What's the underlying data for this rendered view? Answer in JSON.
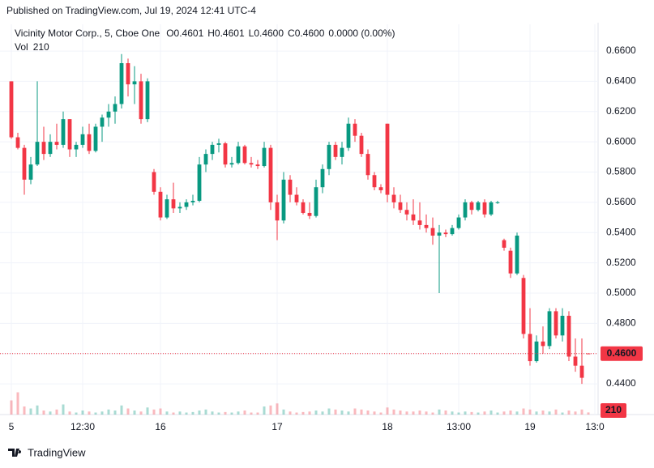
{
  "header": {
    "published": "Published on TradingView.com, Jul 19, 2024 12:41 UTC-4"
  },
  "footer": {
    "brand": "TradingView"
  },
  "chart_data": {
    "type": "candlestick",
    "symbol": "Vicinity Motor Corp., 5, Cboe One",
    "ohlc": [
      {
        "key": "O",
        "value": "0.4601"
      },
      {
        "key": "H",
        "value": "0.4601"
      },
      {
        "key": "L",
        "value": "0.4600"
      },
      {
        "key": "C",
        "value": "0.4600"
      }
    ],
    "change": "0.0000 (0.00%)",
    "volume_title": "Vol",
    "volume_value": "210",
    "up_color": "#089981",
    "down_color": "#f23645",
    "grid": true,
    "ylim": [
      0.4197,
      0.6777
    ],
    "yticks": [
      {
        "value": 0.44,
        "label": "0.4400"
      },
      {
        "value": 0.46,
        "label": "0.4600"
      },
      {
        "value": 0.48,
        "label": "0.4800"
      },
      {
        "value": 0.5,
        "label": "0.5000"
      },
      {
        "value": 0.52,
        "label": "0.5200"
      },
      {
        "value": 0.54,
        "label": "0.5400"
      },
      {
        "value": 0.56,
        "label": "0.5600"
      },
      {
        "value": 0.58,
        "label": "0.5800"
      },
      {
        "value": 0.6,
        "label": "0.6000"
      },
      {
        "value": 0.62,
        "label": "0.6200"
      },
      {
        "value": 0.64,
        "label": "0.6400"
      },
      {
        "value": 0.66,
        "label": "0.6600"
      }
    ],
    "xlim": [
      -0.5,
      90.5
    ],
    "xticks": [
      {
        "value": 0,
        "label": "5"
      },
      {
        "value": 11,
        "label": "12:30"
      },
      {
        "value": 23,
        "label": "16"
      },
      {
        "value": 41,
        "label": "17"
      },
      {
        "value": 58,
        "label": "18"
      },
      {
        "value": 69,
        "label": "13:00"
      },
      {
        "value": 80,
        "label": "19"
      },
      {
        "value": 90,
        "label": "13:0"
      }
    ],
    "last_price": {
      "value": 0.46,
      "label": "0.4600"
    },
    "last_volume": {
      "value": 210,
      "label": "210"
    },
    "y2lim": [
      0,
      3200
    ],
    "candles": [
      [
        0.64,
        0.64,
        0.602,
        0.603
      ],
      [
        0.603,
        0.606,
        0.595,
        0.596
      ],
      [
        0.596,
        0.598,
        0.565,
        0.575
      ],
      [
        0.575,
        0.59,
        0.572,
        0.585
      ],
      [
        0.585,
        0.64,
        0.584,
        0.6
      ],
      [
        0.6,
        0.61,
        0.588,
        0.592
      ],
      [
        0.592,
        0.605,
        0.59,
        0.6
      ],
      [
        0.6,
        0.612,
        0.595,
        0.598
      ],
      [
        0.598,
        0.62,
        0.596,
        0.615
      ],
      [
        0.615,
        0.615,
        0.59,
        0.595
      ],
      [
        0.595,
        0.6,
        0.59,
        0.598
      ],
      [
        0.598,
        0.61,
        0.596,
        0.605
      ],
      [
        0.605,
        0.612,
        0.592,
        0.594
      ],
      [
        0.594,
        0.612,
        0.593,
        0.61
      ],
      [
        0.61,
        0.618,
        0.6,
        0.616
      ],
      [
        0.616,
        0.625,
        0.61,
        0.62
      ],
      [
        0.62,
        0.63,
        0.612,
        0.625
      ],
      [
        0.625,
        0.658,
        0.622,
        0.652
      ],
      [
        0.652,
        0.655,
        0.63,
        0.638
      ],
      [
        0.638,
        0.65,
        0.625,
        0.64
      ],
      [
        0.64,
        0.645,
        0.612,
        0.615
      ],
      [
        0.615,
        0.642,
        0.613,
        0.64
      ],
      [
        0.58,
        0.582,
        0.565,
        0.567
      ],
      [
        0.567,
        0.57,
        0.548,
        0.55
      ],
      [
        0.55,
        0.565,
        0.549,
        0.562
      ],
      [
        0.562,
        0.573,
        0.553,
        0.556
      ],
      [
        0.556,
        0.56,
        0.553,
        0.557
      ],
      [
        0.557,
        0.562,
        0.555,
        0.56
      ],
      [
        0.56,
        0.565,
        0.558,
        0.561
      ],
      [
        0.561,
        0.59,
        0.56,
        0.585
      ],
      [
        0.585,
        0.595,
        0.58,
        0.592
      ],
      [
        0.592,
        0.6,
        0.588,
        0.598
      ],
      [
        0.598,
        0.602,
        0.593,
        0.599
      ],
      [
        0.599,
        0.6,
        0.583,
        0.585
      ],
      [
        0.585,
        0.59,
        0.583,
        0.586
      ],
      [
        0.586,
        0.6,
        0.585,
        0.597
      ],
      [
        0.597,
        0.598,
        0.585,
        0.586
      ],
      [
        0.586,
        0.59,
        0.583,
        0.585
      ],
      [
        0.585,
        0.588,
        0.582,
        0.584
      ],
      [
        0.584,
        0.6,
        0.583,
        0.596
      ],
      [
        0.596,
        0.598,
        0.555,
        0.56
      ],
      [
        0.56,
        0.565,
        0.535,
        0.548
      ],
      [
        0.548,
        0.58,
        0.546,
        0.575
      ],
      [
        0.575,
        0.578,
        0.56,
        0.565
      ],
      [
        0.565,
        0.57,
        0.558,
        0.56
      ],
      [
        0.56,
        0.562,
        0.552,
        0.553
      ],
      [
        0.553,
        0.56,
        0.549,
        0.551
      ],
      [
        0.551,
        0.575,
        0.55,
        0.57
      ],
      [
        0.57,
        0.585,
        0.566,
        0.582
      ],
      [
        0.582,
        0.6,
        0.578,
        0.598
      ],
      [
        0.598,
        0.6,
        0.588,
        0.59
      ],
      [
        0.59,
        0.6,
        0.585,
        0.596
      ],
      [
        0.596,
        0.616,
        0.594,
        0.612
      ],
      [
        0.612,
        0.615,
        0.6,
        0.604
      ],
      [
        0.604,
        0.606,
        0.59,
        0.592
      ],
      [
        0.592,
        0.595,
        0.575,
        0.578
      ],
      [
        0.578,
        0.58,
        0.568,
        0.57
      ],
      [
        0.57,
        0.572,
        0.566,
        0.568
      ],
      [
        0.612,
        0.612,
        0.56,
        0.565
      ],
      [
        0.565,
        0.57,
        0.556,
        0.56
      ],
      [
        0.56,
        0.565,
        0.553,
        0.555
      ],
      [
        0.555,
        0.56,
        0.548,
        0.552
      ],
      [
        0.552,
        0.562,
        0.545,
        0.548
      ],
      [
        0.548,
        0.56,
        0.542,
        0.545
      ],
      [
        0.545,
        0.552,
        0.54,
        0.543
      ],
      [
        0.543,
        0.55,
        0.532,
        0.538
      ],
      [
        0.538,
        0.545,
        0.5,
        0.54
      ],
      [
        0.54,
        0.542,
        0.537,
        0.539
      ],
      [
        0.539,
        0.545,
        0.538,
        0.543
      ],
      [
        0.543,
        0.552,
        0.542,
        0.55
      ],
      [
        0.55,
        0.562,
        0.548,
        0.56
      ],
      [
        0.56,
        0.561,
        0.552,
        0.555
      ],
      [
        0.555,
        0.561,
        0.554,
        0.56
      ],
      [
        0.56,
        0.562,
        0.55,
        0.552
      ],
      [
        0.552,
        0.561,
        0.551,
        0.56
      ],
      [
        0.56,
        0.561,
        0.559,
        0.56
      ],
      [
        0.535,
        0.536,
        0.528,
        0.53
      ],
      [
        0.528,
        0.53,
        0.51,
        0.513
      ],
      [
        0.513,
        0.54,
        0.512,
        0.538
      ],
      [
        0.51,
        0.512,
        0.47,
        0.473
      ],
      [
        0.473,
        0.49,
        0.452,
        0.455
      ],
      [
        0.455,
        0.472,
        0.454,
        0.468
      ],
      [
        0.468,
        0.478,
        0.46,
        0.465
      ],
      [
        0.465,
        0.49,
        0.463,
        0.488
      ],
      [
        0.488,
        0.49,
        0.47,
        0.472
      ],
      [
        0.472,
        0.49,
        0.468,
        0.485
      ],
      [
        0.485,
        0.488,
        0.455,
        0.458
      ],
      [
        0.458,
        0.47,
        0.448,
        0.452
      ],
      [
        0.452,
        0.47,
        0.44,
        0.444
      ],
      [
        0.4601,
        0.4601,
        0.46,
        0.46
      ]
    ],
    "volumes": [
      1400,
      2200,
      800,
      600,
      900,
      400,
      300,
      500,
      1000,
      300,
      200,
      400,
      300,
      200,
      300,
      500,
      400,
      900,
      600,
      400,
      300,
      700,
      500,
      600,
      300,
      200,
      300,
      200,
      250,
      400,
      500,
      300,
      200,
      250,
      200,
      300,
      400,
      200,
      200,
      800,
      900,
      1100,
      500,
      300,
      200,
      250,
      300,
      400,
      300,
      600,
      500,
      400,
      300,
      600,
      500,
      400,
      300,
      200,
      700,
      500,
      400,
      300,
      300,
      400,
      300,
      200,
      500,
      400,
      300,
      200,
      300,
      250,
      200,
      300,
      400,
      200,
      300,
      400,
      300,
      600,
      500,
      300,
      400,
      300,
      500,
      200,
      400,
      300,
      500,
      210
    ]
  }
}
